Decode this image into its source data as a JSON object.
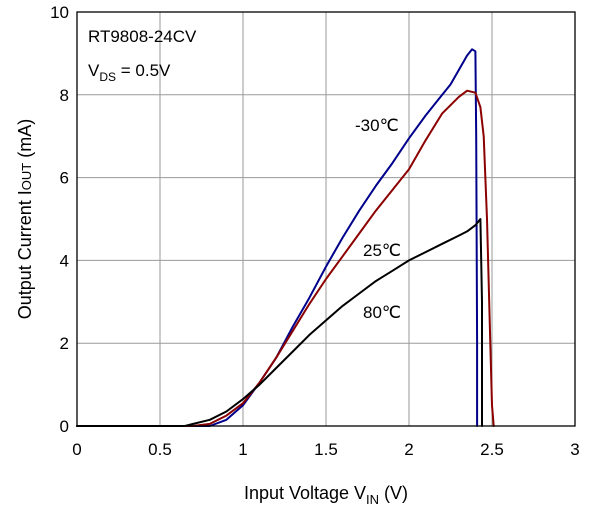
{
  "chart_data": {
    "type": "line",
    "title": "",
    "xlabel": "Input Voltage V",
    "xlabel_sub": "IN",
    "xlabel_unit": " (V)",
    "ylabel": "Output Current I",
    "ylabel_sub": "OUT",
    "ylabel_unit": " (mA)",
    "xlim": [
      0,
      3
    ],
    "ylim": [
      0,
      10
    ],
    "x_ticks": [
      0,
      0.5,
      1,
      1.5,
      2,
      2.5,
      3
    ],
    "x_tick_labels": [
      "0",
      "0.5",
      "1",
      "1.5",
      "2",
      "2.5",
      "3"
    ],
    "y_ticks": [
      0,
      2,
      4,
      6,
      8,
      10
    ],
    "y_tick_labels": [
      "0",
      "2",
      "4",
      "6",
      "8",
      "10"
    ],
    "grid": true,
    "annotations": {
      "device": "RT9808-24CV",
      "condition_prefix": "V",
      "condition_sub": "DS",
      "condition_suffix": " = 0.5V"
    },
    "series": [
      {
        "name": "-30℃",
        "color": "#00008b",
        "x": [
          0,
          0.7,
          0.8,
          0.9,
          1.0,
          1.1,
          1.2,
          1.3,
          1.4,
          1.5,
          1.6,
          1.7,
          1.8,
          1.9,
          2.0,
          2.1,
          2.2,
          2.25,
          2.3,
          2.35,
          2.38,
          2.4,
          2.405,
          2.41,
          2.41
        ],
        "y": [
          0,
          0,
          0,
          0.15,
          0.5,
          1.05,
          1.65,
          2.4,
          3.1,
          3.85,
          4.55,
          5.2,
          5.8,
          6.35,
          6.95,
          7.5,
          8.0,
          8.25,
          8.6,
          8.95,
          9.1,
          9.05,
          7.0,
          2.0,
          0
        ]
      },
      {
        "name": "25℃",
        "color": "#8b0000",
        "x": [
          0,
          0.7,
          0.8,
          0.9,
          1.0,
          1.1,
          1.2,
          1.3,
          1.4,
          1.5,
          1.6,
          1.7,
          1.8,
          1.9,
          2.0,
          2.1,
          2.2,
          2.3,
          2.35,
          2.4,
          2.43,
          2.45,
          2.47,
          2.49,
          2.5,
          2.51
        ],
        "y": [
          0,
          0,
          0.05,
          0.25,
          0.55,
          1.05,
          1.65,
          2.3,
          2.95,
          3.55,
          4.1,
          4.65,
          5.2,
          5.7,
          6.2,
          6.9,
          7.55,
          7.95,
          8.1,
          8.05,
          7.7,
          7.0,
          5.0,
          2.0,
          0.5,
          0
        ]
      },
      {
        "name": "80℃",
        "color": "#000000",
        "x": [
          0,
          0.65,
          0.7,
          0.8,
          0.9,
          1.0,
          1.1,
          1.2,
          1.3,
          1.4,
          1.5,
          1.6,
          1.7,
          1.8,
          1.9,
          2.0,
          2.1,
          2.2,
          2.3,
          2.35,
          2.4,
          2.43,
          2.44,
          2.44
        ],
        "y": [
          0,
          0,
          0.05,
          0.15,
          0.35,
          0.65,
          1.0,
          1.4,
          1.8,
          2.2,
          2.55,
          2.9,
          3.2,
          3.5,
          3.75,
          4.0,
          4.2,
          4.4,
          4.6,
          4.7,
          4.85,
          5.0,
          3.0,
          0
        ]
      }
    ]
  }
}
